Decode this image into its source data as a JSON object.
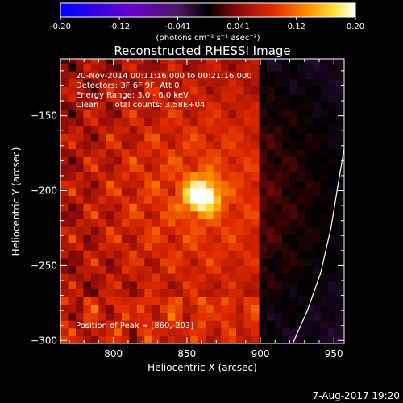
{
  "colorbar": {
    "tick_labels": [
      "-0.20",
      "-0.12",
      "-0.041",
      "0.041",
      "0.12",
      "0.20"
    ],
    "tick_values": [
      -0.2,
      -0.12,
      -0.041,
      0.041,
      0.12,
      0.2
    ],
    "range": [
      -0.2,
      0.2
    ],
    "unit_label": "(photons cm⁻² s⁻¹ asec⁻²)"
  },
  "chart_data": {
    "type": "heatmap",
    "title": "Reconstructed RHESSI Image",
    "xlabel": "Heliocentric X (arcsec)",
    "ylabel": "Heliocentric Y (arcsec)",
    "xlim": [
      764,
      957
    ],
    "ylim": [
      -302,
      -112
    ],
    "x_ticks": [
      800,
      850,
      900,
      950
    ],
    "x_tick_labels": [
      "800",
      "850",
      "900",
      "950"
    ],
    "y_ticks": [
      -300,
      -250,
      -200,
      -150
    ],
    "y_tick_labels": [
      "−300",
      "−250",
      "−200",
      "−150"
    ],
    "grid": false,
    "colormap": [
      "#0000ff",
      "#6a00c8",
      "#5a1a70",
      "#000000",
      "#8b0a0a",
      "#e02a00",
      "#ff9000",
      "#ffe040",
      "#ffffff"
    ],
    "peak_position": [
      860,
      -203
    ],
    "limb_curve": [
      [
        922,
        -302
      ],
      [
        932,
        -280
      ],
      [
        941,
        -255
      ],
      [
        948,
        -225
      ],
      [
        953,
        -195
      ],
      [
        957,
        -172
      ]
    ],
    "annotations": [
      "20-Nov-2014 00:11:16.000 to 00:21:16.000",
      "Detectors: 3F 6F 9F, Att 0",
      "Energy Range: 3.0 - 6.0 keV",
      "Clean     Total counts: 3.58E+04"
    ],
    "peak_label": "Position of Peak = [860,-203]"
  },
  "footer": {
    "date": "7-Aug-2017 19:20"
  }
}
